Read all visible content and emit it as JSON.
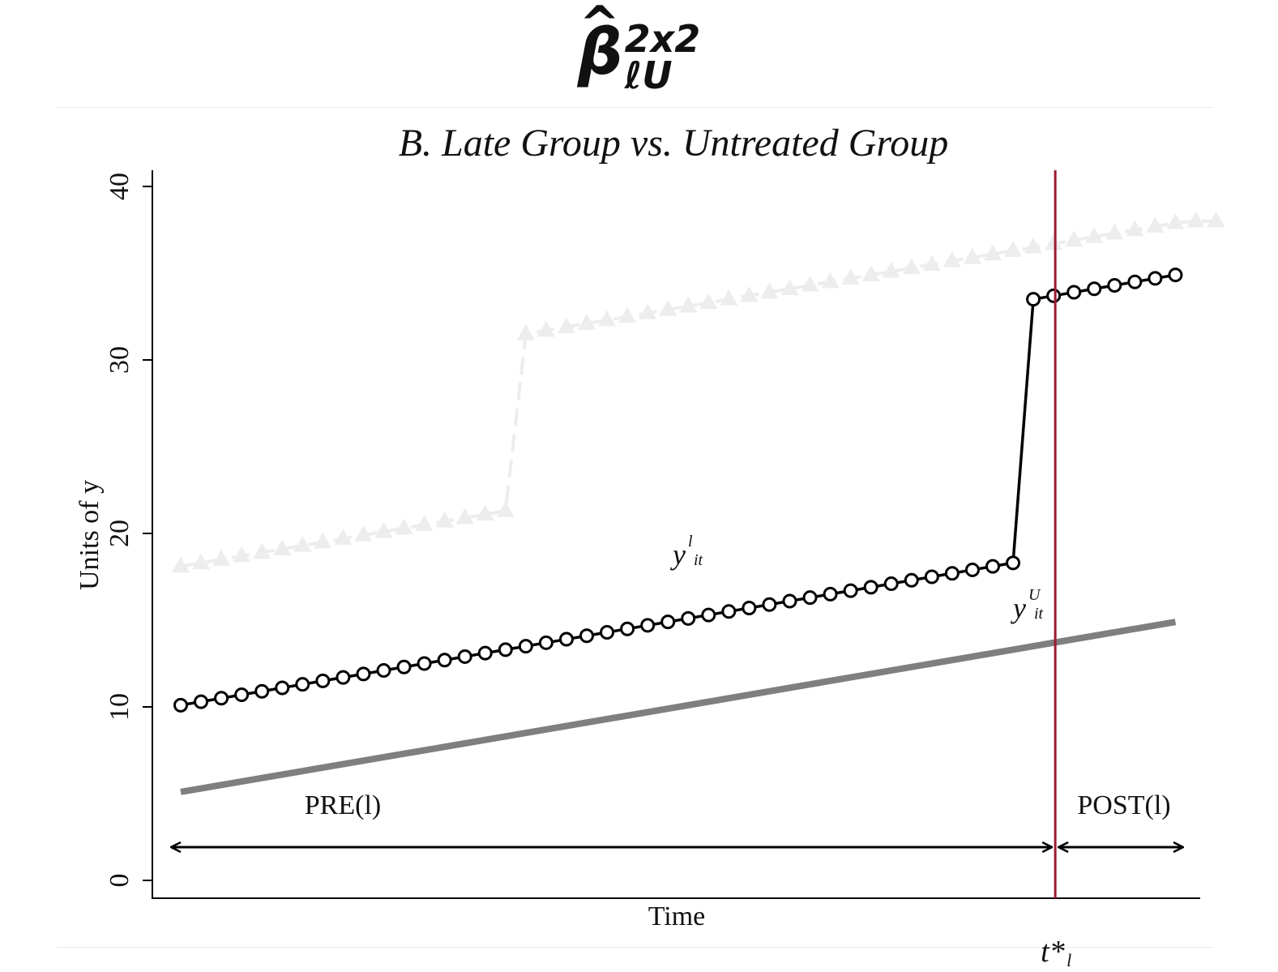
{
  "formula": {
    "symbol": "β",
    "superscript": "2x2",
    "subscript": "ℓU"
  },
  "chart_data": {
    "type": "line",
    "title": "B. Late Group vs. Untreated Group",
    "xlabel": "Time",
    "ylabel": "Units of y",
    "ylim": [
      0,
      40
    ],
    "yticks": [
      0,
      10,
      20,
      30,
      40
    ],
    "grid": false,
    "x_range": [
      1,
      51
    ],
    "treatment_time": {
      "x": 44,
      "label_main": "t*",
      "label_sub": "l",
      "color": "#9b1c31"
    },
    "periods": [
      {
        "label": "PRE(l)",
        "from": 0.5,
        "to": 44
      },
      {
        "label": "POST(l)",
        "from": 44,
        "to": 51.5
      }
    ],
    "series": [
      {
        "role": "background-early",
        "color": "#ededed",
        "marker": "triangle",
        "x": [
          1,
          2,
          3,
          4,
          5,
          6,
          7,
          8,
          9,
          10,
          11,
          12,
          13,
          14,
          15,
          16,
          17,
          18,
          19,
          20,
          21,
          22,
          23,
          24,
          25,
          26,
          27,
          28,
          29,
          30,
          31,
          32,
          33,
          34,
          34,
          35,
          36,
          37,
          38,
          39,
          40,
          41,
          42,
          43,
          44,
          45,
          46,
          47,
          48,
          49,
          50,
          51,
          52
        ],
        "y": [
          18.1,
          18.3,
          18.5,
          18.7,
          18.9,
          19.1,
          19.3,
          19.5,
          19.7,
          19.9,
          20.1,
          20.3,
          20.5,
          20.7,
          20.9,
          21.1,
          21.3,
          31.5,
          31.7,
          31.9,
          32.1,
          32.3,
          32.5,
          32.7,
          32.9,
          33.1,
          33.3,
          33.5,
          33.7,
          33.9,
          34.1,
          34.3,
          34.5,
          34.7,
          34.7,
          34.9,
          35.1,
          35.3,
          35.5,
          35.7,
          35.9,
          36.1,
          36.3,
          36.5,
          36.7,
          36.9,
          37.1,
          37.3,
          37.5,
          37.7,
          37.9,
          38.0,
          38.0
        ]
      },
      {
        "role": "late-group",
        "color": "#000000",
        "marker": "circle",
        "label_main": "y",
        "label_sup": "l",
        "label_sub": "it",
        "x": [
          1,
          2,
          3,
          4,
          5,
          6,
          7,
          8,
          9,
          10,
          11,
          12,
          13,
          14,
          15,
          16,
          17,
          18,
          19,
          20,
          21,
          22,
          23,
          24,
          25,
          26,
          27,
          28,
          29,
          30,
          31,
          32,
          33,
          34,
          35,
          36,
          37,
          38,
          39,
          40,
          41,
          42,
          43,
          44,
          45,
          46,
          47,
          48,
          49,
          50
        ],
        "y": [
          10.1,
          10.3,
          10.5,
          10.7,
          10.9,
          11.1,
          11.3,
          11.5,
          11.7,
          11.9,
          12.1,
          12.3,
          12.5,
          12.7,
          12.9,
          13.1,
          13.3,
          13.5,
          13.7,
          13.9,
          14.1,
          14.3,
          14.5,
          14.7,
          14.9,
          15.1,
          15.3,
          15.5,
          15.7,
          15.9,
          16.1,
          16.3,
          16.5,
          16.7,
          16.9,
          17.1,
          17.3,
          17.5,
          17.7,
          17.9,
          18.1,
          18.3,
          33.5,
          33.7,
          33.9,
          34.1,
          34.3,
          34.5,
          34.7,
          34.9
        ]
      },
      {
        "role": "untreated",
        "color": "#7f7f7f",
        "marker": "none",
        "label_main": "y",
        "label_sup": "U",
        "label_sub": "it",
        "x": [
          1,
          50
        ],
        "y": [
          5.1,
          14.9
        ]
      }
    ]
  }
}
